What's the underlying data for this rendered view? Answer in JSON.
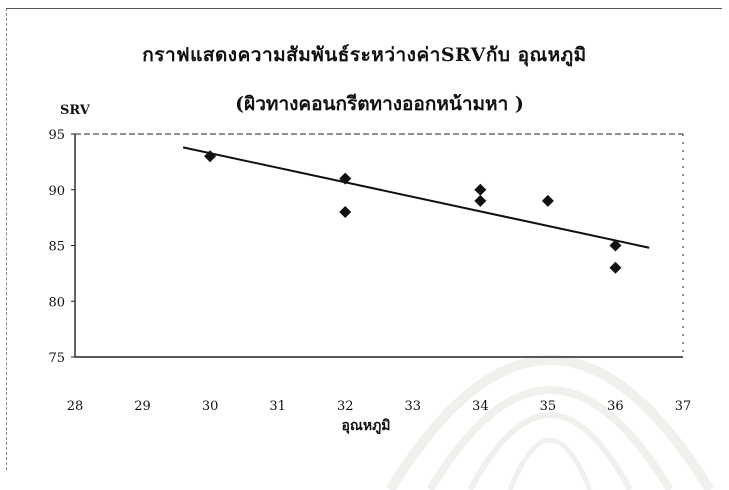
{
  "chart_data": {
    "type": "scatter",
    "title": "กราฟแสดงความสัมพันธ์ระหว่างค่าSRVกับ อุณหภูมิ",
    "subtitle": "(ผิวทางคอนกรีตทางออกหน้ามหา   )",
    "xlabel": "อุณหภูมิ",
    "ylabel": "SRV",
    "xlim": [
      28,
      37
    ],
    "ylim": [
      75,
      95
    ],
    "x_ticks": [
      28,
      29,
      30,
      31,
      32,
      33,
      34,
      35,
      36,
      37
    ],
    "y_ticks": [
      75,
      80,
      85,
      90,
      95
    ],
    "grid": false,
    "points": [
      {
        "x": 30,
        "y": 93
      },
      {
        "x": 32,
        "y": 91
      },
      {
        "x": 32,
        "y": 88
      },
      {
        "x": 34,
        "y": 90
      },
      {
        "x": 34,
        "y": 89
      },
      {
        "x": 35,
        "y": 89
      },
      {
        "x": 36,
        "y": 85
      },
      {
        "x": 36,
        "y": 83
      }
    ],
    "trendline": {
      "x_start": 29.6,
      "y_start": 93.8,
      "x_end": 36.5,
      "y_end": 84.8
    },
    "colors": {
      "marker": "#111111",
      "line": "#111111",
      "axis": "#222222"
    }
  }
}
